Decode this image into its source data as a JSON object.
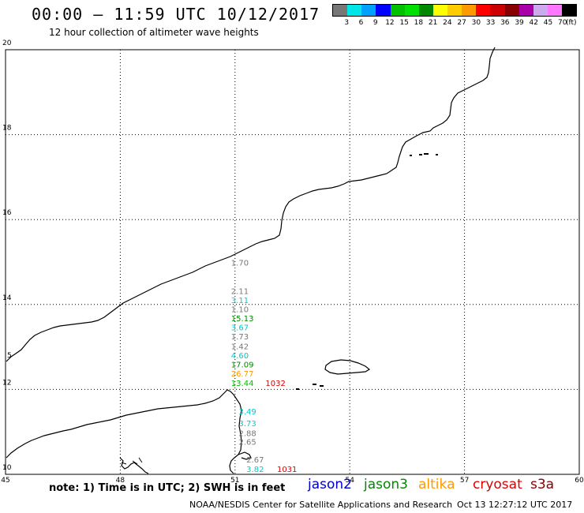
{
  "header": {
    "title": "00:00 – 11:59 UTC 10/12/2017",
    "subtitle": "12 hour collection of altimeter wave heights"
  },
  "legend": {
    "colors": [
      "#777777",
      "#00e5e5",
      "#00a0ff",
      "#0000ff",
      "#00c000",
      "#00e000",
      "#008800",
      "#ffff00",
      "#ffcc00",
      "#ff9900",
      "#ff0000",
      "#cc0000",
      "#880000",
      "#aa00aa",
      "#ccaaee",
      "#ff77ff",
      "#000000"
    ],
    "ticks": [
      "3",
      "6",
      "9",
      "12",
      "15",
      "18",
      "21",
      "24",
      "27",
      "30",
      "33",
      "36",
      "39",
      "42",
      "45",
      "70"
    ],
    "unit": "(ft)"
  },
  "map": {
    "lat_labels": [
      "20",
      "18",
      "16",
      "14",
      "12",
      "10"
    ],
    "lon_labels": [
      "45",
      "48",
      "51",
      "54",
      "57",
      "60"
    ],
    "stray_label": "5"
  },
  "observations": [
    {
      "id": "o1",
      "value": "1.70",
      "color": "#777777",
      "lon": 51.0,
      "lat": 14.99
    },
    {
      "id": "o2",
      "value": "2.11",
      "color": "#777777",
      "lon": 51.0,
      "lat": 14.32
    },
    {
      "id": "o3",
      "value": "3.11",
      "color": "#00cccc",
      "lon": 51.0,
      "lat": 14.11
    },
    {
      "id": "o4",
      "value": "1.10",
      "color": "#777777",
      "lon": 51.0,
      "lat": 13.89
    },
    {
      "id": "o5",
      "value": "15.13",
      "color": "#008800",
      "lon": 51.0,
      "lat": 13.68
    },
    {
      "id": "o6",
      "value": "3.67",
      "color": "#00cccc",
      "lon": 51.0,
      "lat": 13.47
    },
    {
      "id": "o7",
      "value": "1.73",
      "color": "#777777",
      "lon": 51.0,
      "lat": 13.25
    },
    {
      "id": "o8",
      "value": "1.42",
      "color": "#777777",
      "lon": 51.0,
      "lat": 13.02
    },
    {
      "id": "o9",
      "value": "4.60",
      "color": "#00cccc",
      "lon": 51.0,
      "lat": 12.81
    },
    {
      "id": "o10",
      "value": "17.09",
      "color": "#008800",
      "lon": 51.0,
      "lat": 12.59
    },
    {
      "id": "o11",
      "value": "26.77",
      "color": "#ff9900",
      "lon": 51.0,
      "lat": 12.38
    },
    {
      "id": "o12",
      "value": "13.44",
      "color": "#00bb00",
      "lon": 51.0,
      "lat": 12.16
    },
    {
      "id": "o13",
      "value": "1032",
      "color": "#dd0000",
      "lon": 51.9,
      "lat": 12.16
    },
    {
      "id": "o14",
      "value": "3.49",
      "color": "#00cccc",
      "lon": 51.2,
      "lat": 11.49
    },
    {
      "id": "o15",
      "value": "3.73",
      "color": "#00cccc",
      "lon": 51.2,
      "lat": 11.21
    },
    {
      "id": "o16",
      "value": "2.88",
      "color": "#777777",
      "lon": 51.2,
      "lat": 10.98
    },
    {
      "id": "o17",
      "value": "2.65",
      "color": "#777777",
      "lon": 51.2,
      "lat": 10.77
    },
    {
      "id": "o18",
      "value": "2.67",
      "color": "#777777",
      "lon": 51.4,
      "lat": 10.35
    },
    {
      "id": "o19",
      "value": "3.82",
      "color": "#00cccc",
      "lon": 51.4,
      "lat": 10.13
    },
    {
      "id": "o20",
      "value": "1031",
      "color": "#dd0000",
      "lon": 52.2,
      "lat": 10.13
    }
  ],
  "note": "note: 1) Time is in UTC; 2) SWH is in feet",
  "satellites": [
    {
      "name": "jason2",
      "color": "#0000cc"
    },
    {
      "name": "jason3",
      "color": "#008800"
    },
    {
      "name": "altika",
      "color": "#ff9900"
    },
    {
      "name": "cryosat",
      "color": "#dd0000"
    },
    {
      "name": "s3a",
      "color": "#880000"
    }
  ],
  "footer": {
    "credit": "NOAA/NESDIS Center for Satellite Applications and Research",
    "timestamp": "Oct 13 12:27:12 UTC 2017"
  }
}
